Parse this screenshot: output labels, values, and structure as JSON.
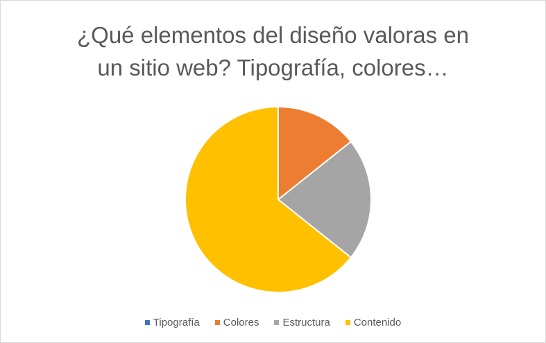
{
  "chart_data": {
    "type": "pie",
    "title_lines": [
      "¿Qué elementos del diseño valoras en",
      "un sitio web? Tipografía, colores…"
    ],
    "categories": [
      "Tipografía",
      "Colores",
      "Estructura",
      "Contenido"
    ],
    "values": [
      0,
      2,
      3,
      9
    ],
    "colors": [
      "#4472c4",
      "#ed7d31",
      "#a5a5a5",
      "#ffc000"
    ],
    "legend_position": "bottom",
    "start_angle_deg": 0,
    "direction": "clockwise"
  }
}
